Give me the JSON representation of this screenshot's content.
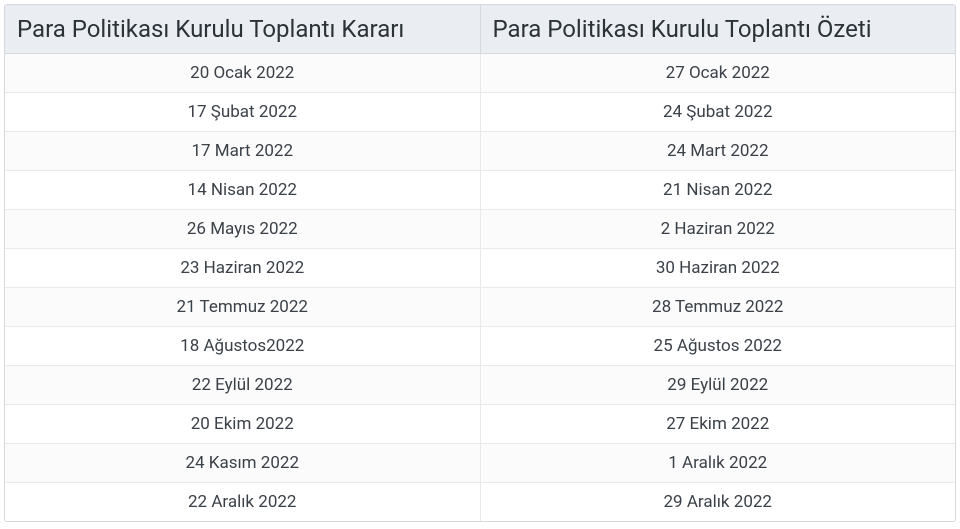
{
  "table": {
    "columns": [
      "Para Politikası Kurulu Toplantı Kararı",
      "Para Politikası Kurulu Toplantı Özeti"
    ],
    "rows": [
      [
        "20 Ocak 2022",
        "27 Ocak 2022"
      ],
      [
        "17 Şubat 2022",
        "24 Şubat 2022"
      ],
      [
        "17 Mart 2022",
        "24 Mart 2022"
      ],
      [
        "14 Nisan 2022",
        "21 Nisan 2022"
      ],
      [
        "26 Mayıs 2022",
        "2 Haziran 2022"
      ],
      [
        "23 Haziran 2022",
        "30 Haziran 2022"
      ],
      [
        "21 Temmuz 2022",
        "28 Temmuz 2022"
      ],
      [
        "18 Ağustos2022",
        "25 Ağustos 2022"
      ],
      [
        "22 Eylül 2022",
        "29 Eylül 2022"
      ],
      [
        "20 Ekim 2022",
        "27 Ekim 2022"
      ],
      [
        "24 Kasım 2022",
        "1 Aralık 2022"
      ],
      [
        "22 Aralık 2022",
        "29 Aralık 2022"
      ]
    ],
    "styles": {
      "header_bg": "#eaeef3",
      "header_fontsize": 24,
      "header_color": "#2c3338",
      "cell_fontsize": 17,
      "cell_color": "#3b4148",
      "border_color": "#d5d8dc",
      "row_border_color": "#e8e9eb",
      "row_odd_bg": "#fbfbfb",
      "row_even_bg": "#ffffff",
      "container_width": 952,
      "header_align": "left",
      "cell_align": "center"
    }
  }
}
